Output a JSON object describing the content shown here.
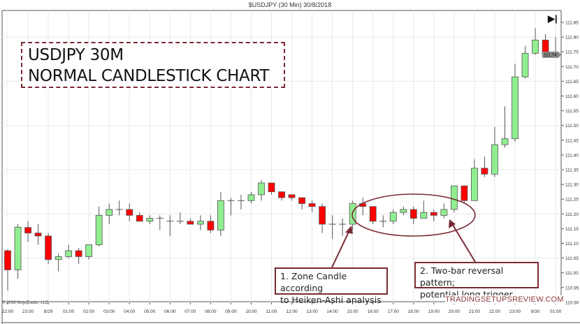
{
  "header": {
    "chart_title": "$USDJPY (30 Min)  30/8/2018",
    "end_button_icon": "skip-to-end-icon"
  },
  "annotations": {
    "title_line1": "USDJPY 30M",
    "title_line2": "NORMAL CANDLESTICK CHART",
    "note1_line1": "1. Zone Candle according",
    "note1_line2": "to Heiken-Ashi analysis",
    "note2_line1": "2. Two-bar reversal pattern;",
    "note2_line2": "potential long trigger",
    "watermark": "TRADINGSETUPSREVIEW.COM",
    "copyright": "© 2018 NinjaTrader, LLC",
    "accent_color": "#7a2a33"
  },
  "chart_data": {
    "type": "candlestick",
    "title": "$USDJPY (30 Min)  30/8/2018",
    "ylim": [
      110.9,
      111.85
    ],
    "y_ticks": [
      "111.85",
      "111.80",
      "111.75",
      "111.70",
      "111.65",
      "111.60",
      "111.55",
      "111.50",
      "111.45",
      "111.40",
      "111.35",
      "111.30",
      "111.25",
      "111.20",
      "111.15",
      "111.10",
      "111.05",
      "111.00",
      "110.95",
      "110.90"
    ],
    "x_ticks": [
      "22:00",
      "23:00",
      "8/29",
      "01:00",
      "02:00",
      "03:00",
      "04:00",
      "05:00",
      "06:00",
      "07:00",
      "08:00",
      "09:00",
      "10:00",
      "11:00",
      "12:00",
      "13:00",
      "14:00",
      "15:00",
      "16:00",
      "17:00",
      "18:00",
      "19:00",
      "20:00",
      "21:00",
      "22:00",
      "23:00",
      "8/30",
      "01:00"
    ],
    "current_price": "111.74",
    "up_color": "#90ee90",
    "down_color": "#ff0000",
    "grid": true,
    "ohlc": [
      [
        111.075,
        111.08,
        110.94,
        111.01
      ],
      [
        111.01,
        111.165,
        110.98,
        111.155
      ],
      [
        111.154,
        111.175,
        111.105,
        111.135
      ],
      [
        111.135,
        111.165,
        111.095,
        111.125
      ],
      [
        111.125,
        111.135,
        111.03,
        111.045
      ],
      [
        111.045,
        111.065,
        111.005,
        111.055
      ],
      [
        111.055,
        111.095,
        111.05,
        111.075
      ],
      [
        111.075,
        111.085,
        111.03,
        111.055
      ],
      [
        111.055,
        111.095,
        111.045,
        111.095
      ],
      [
        111.095,
        111.225,
        111.09,
        111.195
      ],
      [
        111.195,
        111.235,
        111.165,
        111.215
      ],
      [
        111.215,
        111.245,
        111.195,
        111.215
      ],
      [
        111.215,
        111.235,
        111.175,
        111.195
      ],
      [
        111.195,
        111.205,
        111.175,
        111.175
      ],
      [
        111.175,
        111.195,
        111.165,
        111.185
      ],
      [
        111.185,
        111.195,
        111.145,
        111.185
      ],
      [
        111.175,
        111.195,
        111.125,
        111.175
      ],
      [
        111.175,
        111.205,
        111.165,
        111.175
      ],
      [
        111.175,
        111.185,
        111.165,
        111.165
      ],
      [
        111.165,
        111.195,
        111.145,
        111.175
      ],
      [
        111.175,
        111.195,
        111.135,
        111.145
      ],
      [
        111.145,
        111.275,
        111.125,
        111.245
      ],
      [
        111.245,
        111.255,
        111.195,
        111.245
      ],
      [
        111.245,
        111.265,
        111.215,
        111.245
      ],
      [
        111.245,
        111.275,
        111.235,
        111.265
      ],
      [
        111.265,
        111.315,
        111.245,
        111.305
      ],
      [
        111.305,
        111.305,
        111.265,
        111.275
      ],
      [
        111.275,
        111.275,
        111.245,
        111.255
      ],
      [
        111.265,
        111.265,
        111.245,
        111.255
      ],
      [
        111.255,
        111.255,
        111.215,
        111.235
      ],
      [
        111.235,
        111.245,
        111.205,
        111.225
      ],
      [
        111.225,
        111.235,
        111.135,
        111.165
      ],
      [
        111.165,
        111.195,
        111.115,
        111.165
      ],
      [
        111.165,
        111.185,
        111.125,
        111.165
      ],
      [
        111.165,
        111.245,
        111.145,
        111.235
      ],
      [
        111.235,
        111.255,
        111.195,
        111.225
      ],
      [
        111.225,
        111.225,
        111.165,
        111.175
      ],
      [
        111.175,
        111.195,
        111.155,
        111.175
      ],
      [
        111.175,
        111.215,
        111.165,
        111.205
      ],
      [
        111.205,
        111.225,
        111.195,
        111.215
      ],
      [
        111.215,
        111.225,
        111.165,
        111.185
      ],
      [
        111.185,
        111.245,
        111.185,
        111.205
      ],
      [
        111.205,
        111.215,
        111.175,
        111.195
      ],
      [
        111.195,
        111.235,
        111.185,
        111.215
      ],
      [
        111.215,
        111.295,
        111.205,
        111.295
      ],
      [
        111.295,
        111.295,
        111.235,
        111.245
      ],
      [
        111.245,
        111.385,
        111.245,
        111.355
      ],
      [
        111.355,
        111.395,
        111.325,
        111.335
      ],
      [
        111.335,
        111.495,
        111.325,
        111.435
      ],
      [
        111.435,
        111.565,
        111.425,
        111.455
      ],
      [
        111.455,
        111.71,
        111.445,
        111.665
      ],
      [
        111.665,
        111.77,
        111.66,
        111.745
      ],
      [
        111.745,
        111.83,
        111.74,
        111.79
      ],
      [
        111.79,
        111.81,
        111.73,
        111.74
      ],
      [
        111.74,
        111.8,
        111.74,
        111.74
      ]
    ]
  }
}
